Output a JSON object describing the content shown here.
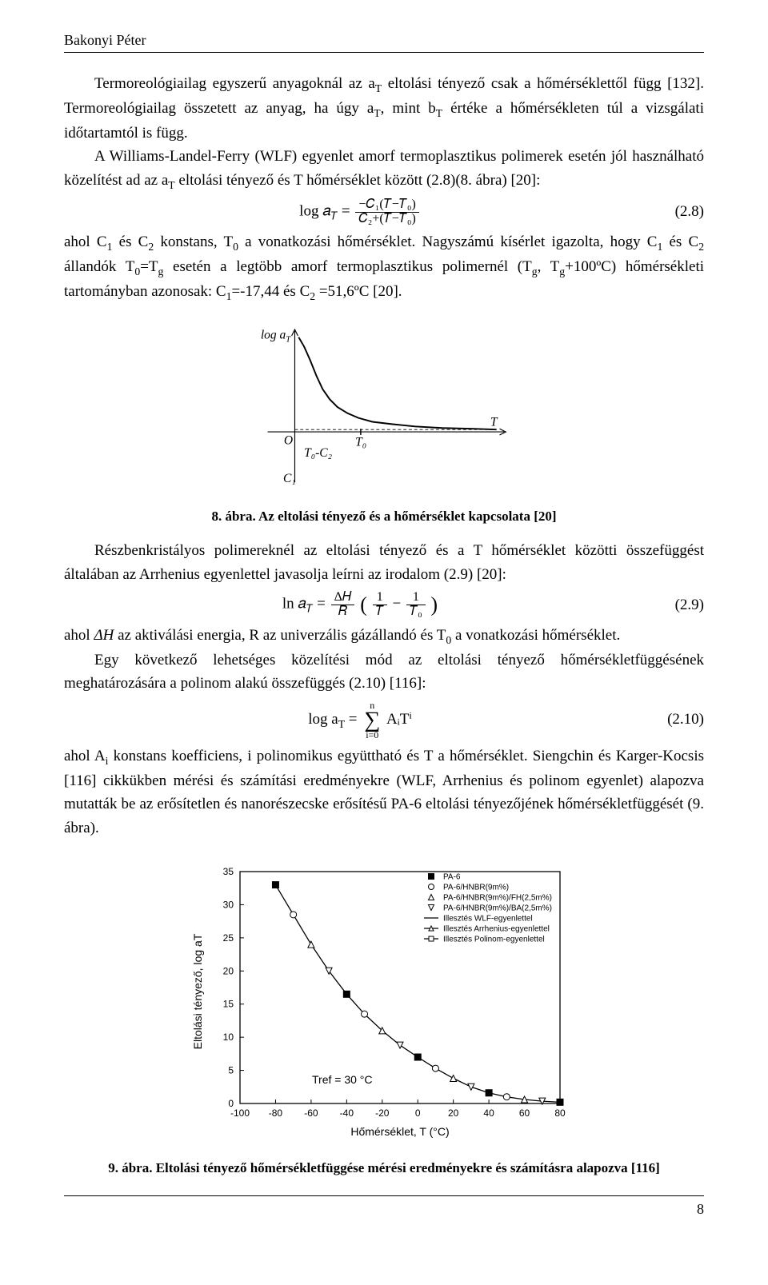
{
  "running_head": "Bakonyi Péter",
  "page_number": "8",
  "para1_a": "Termoreológiailag egyszerű anyagoknál az a",
  "para1_sub1": "T",
  "para1_b": " eltolási tényező csak a hőmérséklettől függ [132]. Termoreológiailag összetett az anyag, ha úgy a",
  "para1_sub2": "T",
  "para1_c": ", mint b",
  "para1_sub3": "T",
  "para1_d": " értéke a hőmérsékleten túl a vizsgálati időtartamtól is függ.",
  "para2_a": "A Williams-Landel-Ferry (WLF) egyenlet amorf termoplasztikus polimerek esetén jól használható közelítést ad az a",
  "para2_sub1": "T",
  "para2_b": " eltolási tényező és T hőmérséklet között (2.8)(8. ábra) [20]:",
  "eq28_lhs": "log 𝑎",
  "eq28_sub": "𝑇",
  "eq28_eq": " = ",
  "eq28_num": "−𝐶₁(𝑇−𝑇₀)",
  "eq28_den": "𝐶₂+(𝑇−𝑇₀)",
  "eq28_no": "(2.8)",
  "para3_a": "ahol C",
  "para3_sub1": "1",
  "para3_b": " és C",
  "para3_sub2": "2",
  "para3_c": " konstans, T",
  "para3_sub3": "0",
  "para3_d": " a vonatkozási hőmérséklet. Nagyszámú kísérlet igazolta, hogy C",
  "para3_sub4": "1",
  "para3_e": " és C",
  "para3_sub5": "2",
  "para3_f": " állandók T",
  "para3_sub6": "0",
  "para3_g": "=T",
  "para3_sub7": "g",
  "para3_h": " esetén a legtöbb amorf termoplasztikus polimernél (T",
  "para3_sub8": "g",
  "para3_i": ", T",
  "para3_sub9": "g",
  "para3_j": "+100ºC) hőmérsékleti tartományban azonosak: C",
  "para3_sub10": "1",
  "para3_k": "=-17,44 és C",
  "para3_sub11": "2",
  "para3_l": " =51,6ºC [20].",
  "fig8": {
    "ylabel": "log a",
    "ylabel_sub": "T",
    "xlabel": "T",
    "origin": "O",
    "x_marks": {
      "T0": "T₀"
    },
    "y_marks": {
      "T0mC2": "T₀-C₂",
      "C1": "C₁"
    },
    "axis_color": "#000000",
    "curve_color": "#000000",
    "background": "#ffffff",
    "curve_points": [
      [
        55,
        18
      ],
      [
        62,
        30
      ],
      [
        70,
        48
      ],
      [
        78,
        68
      ],
      [
        86,
        85
      ],
      [
        95,
        98
      ],
      [
        105,
        108
      ],
      [
        118,
        116
      ],
      [
        132,
        122
      ],
      [
        150,
        127
      ],
      [
        175,
        130
      ],
      [
        205,
        133
      ],
      [
        240,
        135
      ],
      [
        280,
        136
      ],
      [
        310,
        137
      ]
    ]
  },
  "fig8_caption_bold": "8. ábra. Az eltolási tényező és a hőmérséklet kapcsolata [20]",
  "para4": "Részbenkristályos polimereknél az eltolási tényező és a T hőmérséklet közötti összefüggést általában az Arrhenius egyenlettel javasolja leírni az irodalom (2.9) [20]:",
  "eq29_lhs": "ln 𝑎",
  "eq29_sub": "𝑇",
  "eq29_eq": " = ",
  "eq29_frac1_num": "Δ𝐻",
  "eq29_frac1_den": "𝑅",
  "eq29_open": " (",
  "eq29_frac2_num": "1",
  "eq29_frac2_den": "𝑇",
  "eq29_minus": " − ",
  "eq29_frac3_num": "1",
  "eq29_frac3_den": "𝑇₀",
  "eq29_close": ")",
  "eq29_no": "(2.9)",
  "para5_a": "ahol ",
  "para5_i": "ΔH",
  "para5_b": " az aktiválási energia, R az univerzális gázállandó és T",
  "para5_sub1": "0",
  "para5_c": " a vonatkozási hőmérséklet.",
  "para6": "Egy következő lehetséges közelítési mód az eltolási tényező hőmérsékletfüggésének meghatározására a polinom alakú összefüggés (2.10) [116]:",
  "eq210_lhs": "log a",
  "eq210_sub": "T",
  "eq210_eq": " = ",
  "eq210_sum_top": "n",
  "eq210_sum_bot": "i=0",
  "eq210_rhs": " AᵢTⁱ",
  "eq210_no": "(2.10)",
  "para7_a": "ahol A",
  "para7_sub1": "i",
  "para7_b": " konstans koefficiens, i polinomikus együttható és T a hőmérséklet. Siengchin és Karger-Kocsis [116] cikkükben mérési és számítási eredményekre (WLF, Arrhenius és polinom egyenlet) alapozva mutatták be az erősítetlen és nanorészecske erősítésű PA-6 eltolási tényezőjének hőmérsékletfüggését (9. ábra).",
  "fig9": {
    "xlabel": "Hőmérséklet, T (°C)",
    "ylabel": "Eltolási tényező, log aT",
    "xlim": [
      -100,
      80
    ],
    "xtick_step": 20,
    "ylim": [
      0,
      35
    ],
    "ytick_step": 5,
    "ref_label": "Tref = 30 °C",
    "axis_color": "#000000",
    "background": "#ffffff",
    "legend": [
      {
        "marker": "filled-square",
        "label": "PA-6"
      },
      {
        "marker": "open-circle",
        "label": "PA-6/HNBR(9m%)"
      },
      {
        "marker": "open-up-triangle",
        "label": "PA-6/HNBR(9m%)/FH(2,5m%)"
      },
      {
        "marker": "open-down-triangle",
        "label": "PA-6/HNBR(9m%)/BA(2,5m%)"
      },
      {
        "marker": "line-solid",
        "label": "Illesztés WLF-egyenlettel"
      },
      {
        "marker": "line-open-triangle",
        "label": "Illesztés Arrhenius-egyenlettel"
      },
      {
        "marker": "line-open-square",
        "label": "Illesztés Polinom-egyenlettel"
      }
    ],
    "series": {
      "curve": [
        [
          -80,
          33
        ],
        [
          -70,
          28.5
        ],
        [
          -60,
          24
        ],
        [
          -50,
          20
        ],
        [
          -40,
          16.5
        ],
        [
          -30,
          13.5
        ],
        [
          -20,
          11
        ],
        [
          -10,
          8.8
        ],
        [
          0,
          7
        ],
        [
          10,
          5.3
        ],
        [
          20,
          3.8
        ],
        [
          30,
          2.5
        ],
        [
          40,
          1.6
        ],
        [
          50,
          1.0
        ],
        [
          60,
          0.6
        ],
        [
          70,
          0.35
        ],
        [
          80,
          0.2
        ]
      ]
    }
  },
  "fig9_caption_bold": "9. ábra. Eltolási tényező hőmérsékletfüggése mérési eredményekre és számításra alapozva [116]"
}
